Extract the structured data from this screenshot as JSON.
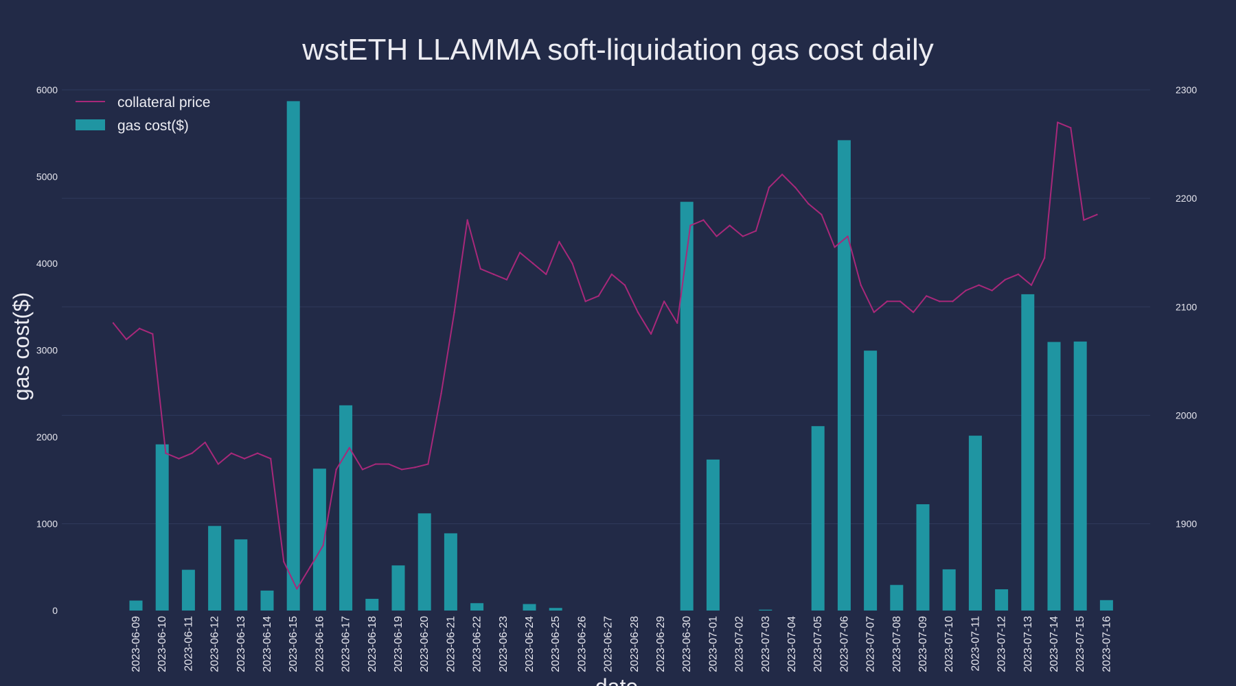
{
  "chart_data": {
    "type": "bar",
    "title": "wstETH LLAMMA soft-liquidation gas cost daily",
    "xlabel": "date",
    "ylabel": "gas cost($)",
    "ylim": [
      0,
      6000
    ],
    "y2lim": [
      1820,
      2300
    ],
    "yticks": [
      0,
      1000,
      2000,
      3000,
      4000,
      5000,
      6000
    ],
    "y2ticks": [
      1900,
      2000,
      2100,
      2200,
      2300
    ],
    "grid": true,
    "legend_position": "top-left",
    "colors": {
      "background": "#222a47",
      "bar": "#1f95a2",
      "line": "#a8287a",
      "grid": "#2f3a5c"
    },
    "categories": [
      "2023-06-09",
      "2023-06-10",
      "2023-06-11",
      "2023-06-12",
      "2023-06-13",
      "2023-06-14",
      "2023-06-15",
      "2023-06-16",
      "2023-06-17",
      "2023-06-18",
      "2023-06-19",
      "2023-06-20",
      "2023-06-21",
      "2023-06-22",
      "2023-06-23",
      "2023-06-24",
      "2023-06-25",
      "2023-06-26",
      "2023-06-27",
      "2023-06-28",
      "2023-06-29",
      "2023-06-30",
      "2023-07-01",
      "2023-07-02",
      "2023-07-03",
      "2023-07-04",
      "2023-07-05",
      "2023-07-06",
      "2023-07-07",
      "2023-07-08",
      "2023-07-09",
      "2023-07-10",
      "2023-07-11",
      "2023-07-12",
      "2023-07-13",
      "2023-07-14",
      "2023-07-15",
      "2023-07-16"
    ],
    "series": [
      {
        "name": "gas cost($)",
        "type": "bar",
        "axis": "left",
        "values": [
          115,
          1915,
          470,
          975,
          820,
          230,
          5870,
          1635,
          2365,
          135,
          520,
          1120,
          890,
          85,
          0,
          75,
          30,
          0,
          0,
          0,
          0,
          4710,
          1740,
          0,
          10,
          0,
          2125,
          5420,
          2995,
          295,
          1225,
          475,
          2015,
          245,
          3645,
          3095,
          3100,
          120
        ]
      },
      {
        "name": "collateral price",
        "type": "line",
        "axis": "right",
        "x": [
          "2023-06-09",
          "2023-06-09 12:00",
          "2023-06-10",
          "2023-06-10 12:00",
          "2023-06-11",
          "2023-06-11 12:00",
          "2023-06-12",
          "2023-06-12 12:00",
          "2023-06-13",
          "2023-06-13 12:00",
          "2023-06-14",
          "2023-06-14 12:00",
          "2023-06-15",
          "2023-06-15 12:00",
          "2023-06-16",
          "2023-06-16 12:00",
          "2023-06-17",
          "2023-06-17 12:00",
          "2023-06-18",
          "2023-06-18 12:00",
          "2023-06-19",
          "2023-06-19 12:00",
          "2023-06-20",
          "2023-06-20 12:00",
          "2023-06-21",
          "2023-06-21 12:00",
          "2023-06-22",
          "2023-06-22 12:00",
          "2023-06-23",
          "2023-06-23 12:00",
          "2023-06-24",
          "2023-06-24 12:00",
          "2023-06-25",
          "2023-06-25 12:00",
          "2023-06-26",
          "2023-06-26 12:00",
          "2023-06-27",
          "2023-06-27 12:00",
          "2023-06-28",
          "2023-06-28 12:00",
          "2023-06-29",
          "2023-06-29 12:00",
          "2023-06-30",
          "2023-06-30 12:00",
          "2023-07-01",
          "2023-07-01 12:00",
          "2023-07-02",
          "2023-07-02 12:00",
          "2023-07-03",
          "2023-07-03 12:00",
          "2023-07-04",
          "2023-07-04 12:00",
          "2023-07-05",
          "2023-07-05 12:00",
          "2023-07-06",
          "2023-07-06 12:00",
          "2023-07-07",
          "2023-07-07 12:00",
          "2023-07-08",
          "2023-07-08 12:00",
          "2023-07-09",
          "2023-07-09 12:00",
          "2023-07-10",
          "2023-07-10 12:00",
          "2023-07-11",
          "2023-07-11 12:00",
          "2023-07-12",
          "2023-07-12 12:00",
          "2023-07-13",
          "2023-07-13 12:00",
          "2023-07-14",
          "2023-07-14 12:00",
          "2023-07-15",
          "2023-07-15 12:00",
          "2023-07-16",
          "2023-07-16 12:00"
        ],
        "values": [
          2085,
          2070,
          2080,
          2075,
          1965,
          1960,
          1965,
          1975,
          1955,
          1965,
          1960,
          1965,
          1960,
          1865,
          1840,
          1860,
          1880,
          1950,
          1970,
          1950,
          1955,
          1955,
          1950,
          1952,
          1955,
          2020,
          2095,
          2180,
          2135,
          2130,
          2125,
          2150,
          2140,
          2130,
          2160,
          2140,
          2105,
          2110,
          2130,
          2120,
          2095,
          2075,
          2105,
          2085,
          2175,
          2180,
          2165,
          2175,
          2165,
          2170,
          2210,
          2222,
          2210,
          2195,
          2185,
          2155,
          2165,
          2120,
          2095,
          2105,
          2105,
          2095,
          2110,
          2105,
          2105,
          2115,
          2120,
          2115,
          2125,
          2130,
          2120,
          2145,
          2270,
          2265,
          2180,
          2185
        ]
      }
    ]
  }
}
